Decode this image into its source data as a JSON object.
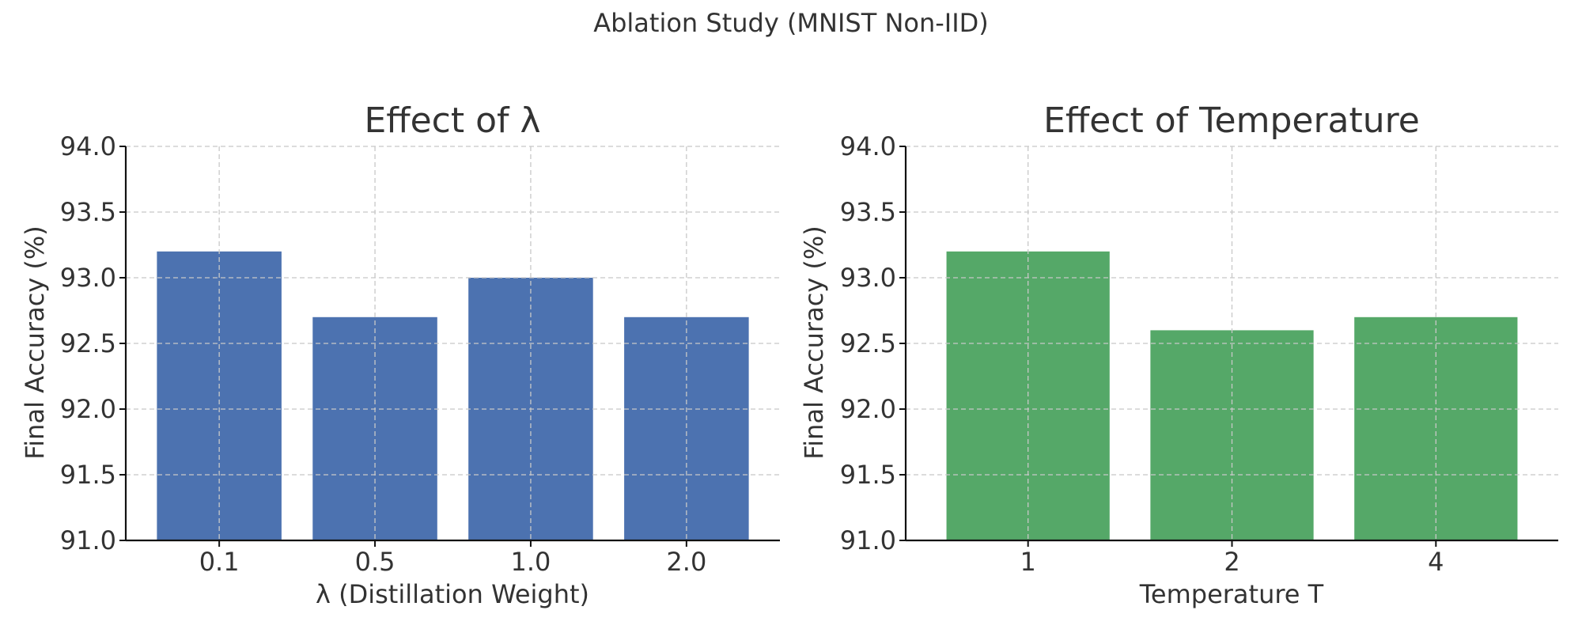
{
  "figure": {
    "suptitle": "Ablation Study (MNIST Non-IID)"
  },
  "chart_data": [
    {
      "type": "bar",
      "title": "Effect of λ",
      "xlabel": "λ (Distillation Weight)",
      "ylabel": "Final Accuracy (%)",
      "categories": [
        "0.1",
        "0.5",
        "1.0",
        "2.0"
      ],
      "values": [
        93.2,
        92.7,
        93.0,
        92.7
      ],
      "ylim": [
        91.0,
        94.0
      ],
      "yticks": [
        "91.0",
        "91.5",
        "92.0",
        "92.5",
        "93.0",
        "93.5",
        "94.0"
      ],
      "color": "#4c72b0",
      "grid": true
    },
    {
      "type": "bar",
      "title": "Effect of Temperature",
      "xlabel": "Temperature T",
      "ylabel": "Final Accuracy (%)",
      "categories": [
        "1",
        "2",
        "4"
      ],
      "values": [
        93.2,
        92.6,
        92.7
      ],
      "ylim": [
        91.0,
        94.0
      ],
      "yticks": [
        "91.0",
        "91.5",
        "92.0",
        "92.5",
        "93.0",
        "93.5",
        "94.0"
      ],
      "color": "#55a868",
      "grid": true
    }
  ]
}
